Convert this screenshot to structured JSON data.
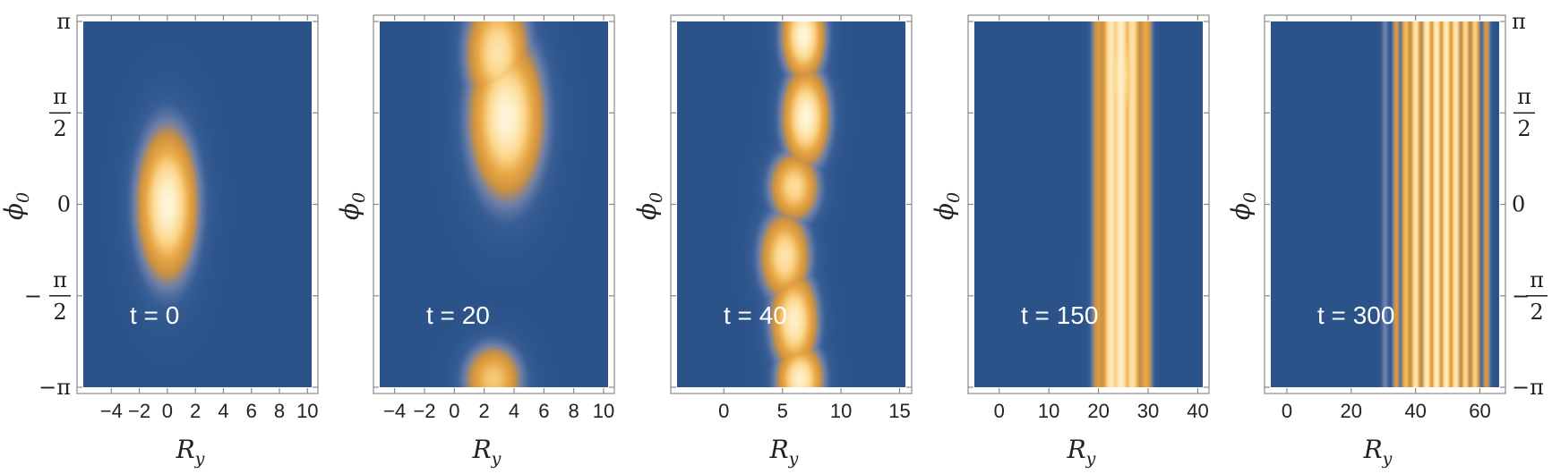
{
  "chart_data": [
    {
      "type": "heatmap",
      "annotation": "t = 0",
      "xlabel": "R",
      "xlabel_sub": "y",
      "ylabel": "ϕ",
      "ylabel_sub": "0",
      "xlim": [
        -6,
        10.3
      ],
      "ylim": [
        -3.14159,
        3.14159
      ],
      "x_ticks": [
        -4,
        -2,
        0,
        2,
        4,
        6,
        8,
        10
      ],
      "x_tick_labels": [
        "−4",
        "−2",
        "0",
        "2",
        "4",
        "6",
        "8",
        "10"
      ],
      "y_ticks": [
        "-π",
        "-π/2",
        "0",
        "π/2",
        "π"
      ],
      "y_tick_side": "left",
      "colors": {
        "low": "#2b5289",
        "high": "#fff6d8"
      },
      "blobs": [
        {
          "x": 0,
          "y": 0,
          "sx": 1.4,
          "sy": 0.85,
          "amp": 1.0
        }
      ],
      "stripes": []
    },
    {
      "type": "heatmap",
      "annotation": "t = 20",
      "xlabel": "R",
      "xlabel_sub": "y",
      "ylabel": "ϕ",
      "ylabel_sub": "0",
      "xlim": [
        -5,
        10.3
      ],
      "ylim": [
        -3.14159,
        3.14159
      ],
      "x_ticks": [
        -4,
        -2,
        0,
        2,
        4,
        6,
        8,
        10
      ],
      "x_tick_labels": [
        "−4",
        "−2",
        "0",
        "2",
        "4",
        "6",
        "8",
        "10"
      ],
      "y_ticks": [
        "-π",
        "-π/2",
        "0",
        "π/2",
        "π"
      ],
      "y_tick_side": "none",
      "colors": {
        "low": "#2b5289",
        "high": "#fff6d8"
      },
      "blobs": [
        {
          "x": 3.5,
          "y": 1.5,
          "sx": 1.6,
          "sy": 0.9,
          "amp": 1.0
        },
        {
          "x": 2.9,
          "y": 2.6,
          "sx": 1.4,
          "sy": 0.7,
          "amp": 0.85
        },
        {
          "x": 2.6,
          "y": -3.0,
          "sx": 1.3,
          "sy": 0.4,
          "amp": 0.7
        }
      ],
      "stripes": []
    },
    {
      "type": "heatmap",
      "annotation": "t = 40",
      "xlabel": "R",
      "xlabel_sub": "y",
      "ylabel": "ϕ",
      "ylabel_sub": "0",
      "xlim": [
        -4,
        15.5
      ],
      "ylim": [
        -3.14159,
        3.14159
      ],
      "x_ticks": [
        0,
        5,
        10,
        15
      ],
      "x_tick_labels": [
        "0",
        "5",
        "10",
        "15"
      ],
      "y_ticks": [
        "-π",
        "-π/2",
        "0",
        "π/2",
        "π"
      ],
      "y_tick_side": "none",
      "colors": {
        "low": "#2b5289",
        "high": "#fff6d8"
      },
      "blobs": [
        {
          "x": 6.8,
          "y": 2.9,
          "sx": 1.2,
          "sy": 0.5,
          "amp": 1.0
        },
        {
          "x": 7.0,
          "y": 1.5,
          "sx": 1.3,
          "sy": 0.55,
          "amp": 1.0
        },
        {
          "x": 6.0,
          "y": 0.3,
          "sx": 1.4,
          "sy": 0.4,
          "amp": 0.8
        },
        {
          "x": 5.2,
          "y": -0.9,
          "sx": 1.4,
          "sy": 0.5,
          "amp": 0.85
        },
        {
          "x": 6.0,
          "y": -2.0,
          "sx": 1.3,
          "sy": 0.55,
          "amp": 0.95
        },
        {
          "x": 6.5,
          "y": -3.0,
          "sx": 1.3,
          "sy": 0.4,
          "amp": 0.95
        }
      ],
      "stripes": []
    },
    {
      "type": "heatmap",
      "annotation": "t = 150",
      "xlabel": "R",
      "xlabel_sub": "y",
      "ylabel": "ϕ",
      "ylabel_sub": "0",
      "xlim": [
        -5,
        41
      ],
      "ylim": [
        -3.14159,
        3.14159
      ],
      "x_ticks": [
        0,
        10,
        20,
        30,
        40
      ],
      "x_tick_labels": [
        "0",
        "10",
        "20",
        "30",
        "40"
      ],
      "y_ticks": [
        "-π",
        "-π/2",
        "0",
        "π/2",
        "π"
      ],
      "y_tick_side": "none",
      "colors": {
        "low": "#2b5289",
        "high": "#fff6d8"
      },
      "blobs": [
        {
          "x": 24.5,
          "y": 2.2,
          "sx": 2.0,
          "sy": 0.9,
          "amp": 0.9
        },
        {
          "x": 23.5,
          "y": -1.5,
          "sx": 2.3,
          "sy": 1.0,
          "amp": 0.7
        }
      ],
      "stripes": [
        {
          "x": 20.0,
          "w": 1.1,
          "amp": 0.45
        },
        {
          "x": 22.5,
          "w": 1.2,
          "amp": 0.9
        },
        {
          "x": 24.5,
          "w": 1.3,
          "amp": 0.95
        },
        {
          "x": 26.8,
          "w": 1.1,
          "amp": 0.85
        },
        {
          "x": 29.5,
          "w": 1.0,
          "amp": 0.55
        }
      ]
    },
    {
      "type": "heatmap",
      "annotation": "t = 300",
      "xlabel": "R",
      "xlabel_sub": "y",
      "ylabel": "ϕ",
      "ylabel_sub": "0",
      "xlim": [
        -5,
        66
      ],
      "ylim": [
        -3.14159,
        3.14159
      ],
      "x_ticks": [
        0,
        20,
        40,
        60
      ],
      "x_tick_labels": [
        "0",
        "20",
        "40",
        "60"
      ],
      "y_ticks": [
        "-π",
        "-π/2",
        "0",
        "π/2",
        "π"
      ],
      "y_tick_side": "right",
      "colors": {
        "low": "#2b5289",
        "high": "#fff6d8"
      },
      "blobs": [],
      "stripes": [
        {
          "x": 30.5,
          "w": 0.9,
          "amp": 0.25
        },
        {
          "x": 34.0,
          "w": 0.9,
          "amp": 0.45
        },
        {
          "x": 37.0,
          "w": 1.0,
          "amp": 0.65
        },
        {
          "x": 40.0,
          "w": 1.1,
          "amp": 0.9
        },
        {
          "x": 43.5,
          "w": 1.1,
          "amp": 0.95
        },
        {
          "x": 46.5,
          "w": 1.1,
          "amp": 0.95
        },
        {
          "x": 49.5,
          "w": 1.1,
          "amp": 0.95
        },
        {
          "x": 52.5,
          "w": 1.1,
          "amp": 0.9
        },
        {
          "x": 55.5,
          "w": 1.0,
          "amp": 0.8
        },
        {
          "x": 58.5,
          "w": 1.0,
          "amp": 0.75
        },
        {
          "x": 62.0,
          "w": 0.9,
          "amp": 0.45
        }
      ]
    }
  ]
}
